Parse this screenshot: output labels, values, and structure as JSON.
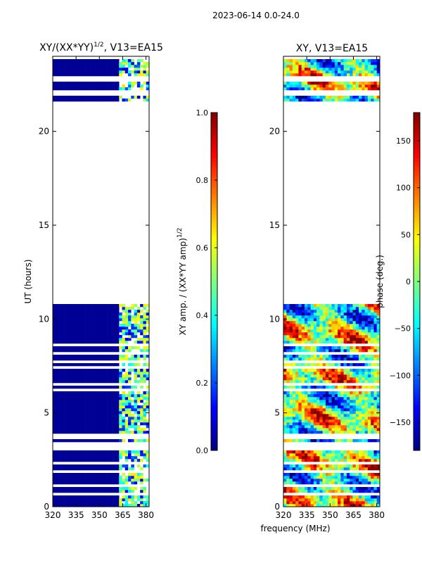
{
  "suptitle": "2023-06-14 0.0-24.0",
  "shared_xlabel": "frequency (MHz)",
  "chart_data": [
    {
      "type": "heatmap",
      "title": "XY/(XX*YY)^(1/2), V13=EA15",
      "title_main": "XY/(XX*YY)",
      "title_sup": "1/2",
      "title_tail": ", V13=EA15",
      "xlabel": "frequency (MHz)",
      "ylabel": "UT (hours)",
      "xlim": [
        320,
        382
      ],
      "ylim": [
        0,
        24
      ],
      "xticks": [
        320,
        335,
        350,
        365,
        380
      ],
      "yticks": [
        0,
        5,
        10,
        15,
        20
      ],
      "data_gap_hours": [
        10.8,
        21.6
      ],
      "colorbar": {
        "label_main": "XY amp. / (XX*YY amp)",
        "label_sup": "1/2",
        "range": [
          0.0,
          1.0
        ],
        "ticks": [
          "0.0",
          "0.2",
          "0.4",
          "0.6",
          "0.8",
          "1.0"
        ],
        "tick_values": [
          0.0,
          0.2,
          0.4,
          0.6,
          0.8,
          1.0
        ],
        "colormap": "jet"
      }
    },
    {
      "type": "heatmap",
      "title": "XY, V13=EA15",
      "xlabel": "frequency (MHz)",
      "ylabel": "",
      "xlim": [
        320,
        382
      ],
      "ylim": [
        0,
        24
      ],
      "xticks": [
        320,
        335,
        350,
        365,
        380
      ],
      "yticks": [
        0,
        5,
        10,
        15,
        20
      ],
      "data_gap_hours": [
        10.8,
        21.6
      ],
      "colorbar": {
        "label": "phase (deg.)",
        "range": [
          -180,
          180
        ],
        "ticks": [
          "−150",
          "−100",
          "−50",
          "0",
          "50",
          "100",
          "150"
        ],
        "tick_values": [
          -150,
          -100,
          -50,
          0,
          50,
          100,
          150
        ],
        "colormap": "jet"
      }
    }
  ]
}
